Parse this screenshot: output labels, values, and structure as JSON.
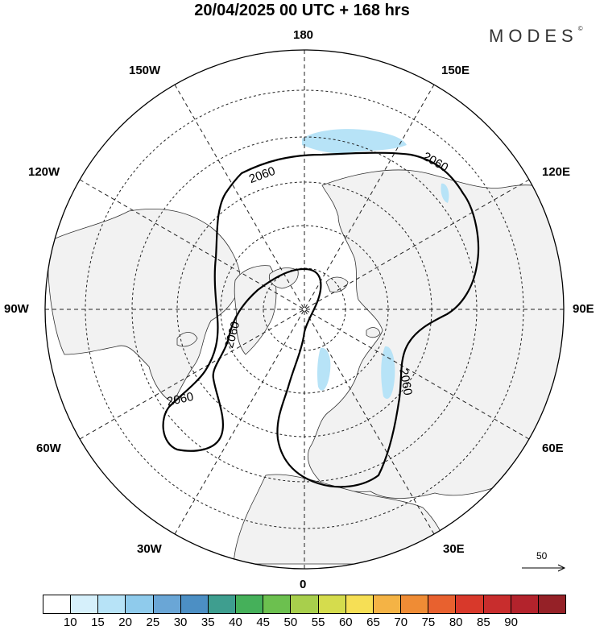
{
  "title": "20/04/2025  00 UTC  + 168 hrs",
  "brand": "MODES",
  "brand_mark": "©",
  "longitude_labels": {
    "top": "180",
    "top_left": "150W",
    "top_right": "150E",
    "upper_left": "120W",
    "upper_right": "120E",
    "left": "90W",
    "right": "90E",
    "lower_left": "60W",
    "lower_right": "60E",
    "bottom_left": "30W",
    "bottom_right": "30E",
    "bottom": "0"
  },
  "contour_labels": [
    "2060",
    "2060",
    "2060",
    "2060",
    "2060"
  ],
  "wind_reference": "50",
  "colorbar": {
    "colors": [
      "#ffffff",
      "#d6f0fb",
      "#b7e3f7",
      "#8fcbec",
      "#6aa6d6",
      "#4c8fc4",
      "#3e9e8f",
      "#45b05a",
      "#6cc04f",
      "#a8cf4c",
      "#d5dc4d",
      "#f6df55",
      "#f4b345",
      "#ef8c35",
      "#e8612f",
      "#d8392b",
      "#c82d2d",
      "#b3232c",
      "#952127"
    ],
    "ticks": [
      "10",
      "15",
      "20",
      "25",
      "30",
      "35",
      "40",
      "45",
      "50",
      "55",
      "60",
      "65",
      "70",
      "75",
      "80",
      "85",
      "90"
    ]
  }
}
